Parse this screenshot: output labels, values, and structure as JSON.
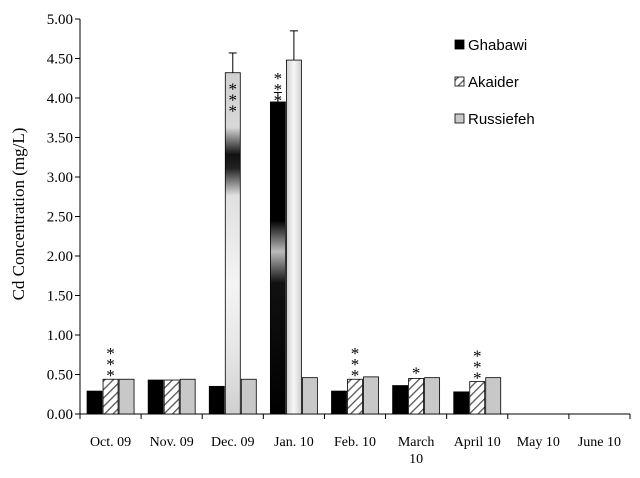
{
  "chart_data": {
    "type": "bar",
    "title": "",
    "xlabel": "",
    "ylabel": "Cd Concentration (mg/L)",
    "ylim": [
      0,
      5
    ],
    "yticks": [
      "0.00",
      "0.50",
      "1.00",
      "1.50",
      "2.00",
      "2.50",
      "3.00",
      "3.50",
      "4.00",
      "4.50",
      "5.00"
    ],
    "categories": [
      [
        "Oct. 09"
      ],
      [
        "Nov. 09"
      ],
      [
        "Dec. 09"
      ],
      [
        "Jan. 10"
      ],
      [
        "Feb. 10"
      ],
      [
        "March",
        "10"
      ],
      [
        "April 10"
      ],
      [
        "May 10"
      ],
      [
        "June 10"
      ]
    ],
    "series": [
      {
        "name": "Ghabawi",
        "color": "#000000",
        "values": [
          0.29,
          0.43,
          0.35,
          3.95,
          0.29,
          0.36,
          0.28,
          null,
          null
        ],
        "errors": [
          null,
          null,
          null,
          0.12,
          null,
          null,
          null,
          null,
          null
        ]
      },
      {
        "name": "Akaider",
        "color": "#bdbdbd",
        "values": [
          0.44,
          0.43,
          4.32,
          4.48,
          0.44,
          0.45,
          0.41,
          null,
          null
        ],
        "errors": [
          null,
          null,
          0.25,
          0.37,
          null,
          null,
          null,
          null,
          null
        ]
      },
      {
        "name": "Russiefeh",
        "color": "#c8c8c8",
        "values": [
          0.44,
          0.44,
          0.44,
          0.46,
          0.47,
          0.46,
          0.46,
          null,
          null
        ],
        "errors": [
          null,
          null,
          null,
          null,
          null,
          null,
          null,
          null,
          null
        ]
      }
    ],
    "annotations": [
      {
        "category": 0,
        "series": 1,
        "text": "***"
      },
      {
        "category": 2,
        "series": 1,
        "text": "***"
      },
      {
        "category": 3,
        "series": 0,
        "text": "***"
      },
      {
        "category": 4,
        "series": 1,
        "text": "***"
      },
      {
        "category": 5,
        "series": 1,
        "text": "*"
      },
      {
        "category": 6,
        "series": 1,
        "text": "***"
      }
    ],
    "legend_position": "top-right",
    "grid": false
  }
}
